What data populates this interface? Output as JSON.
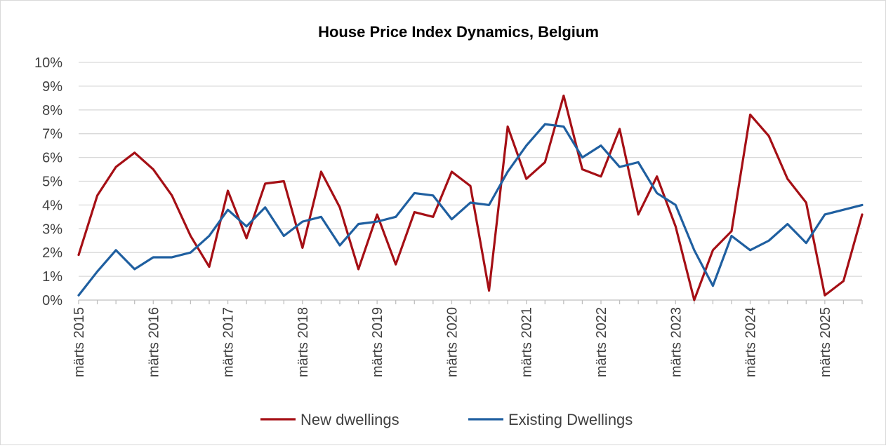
{
  "chart_data": {
    "type": "line",
    "title": "House Price Index Dynamics, Belgium",
    "xlabel": "",
    "ylabel": "",
    "ylim": [
      0,
      10
    ],
    "y_ticks": [
      "0%",
      "1%",
      "2%",
      "3%",
      "4%",
      "5%",
      "6%",
      "7%",
      "8%",
      "9%",
      "10%"
    ],
    "x_tick_labels": [
      "märts 2015",
      "märts 2016",
      "märts 2017",
      "märts 2018",
      "märts 2019",
      "märts 2020",
      "märts 2021",
      "märts 2022",
      "märts 2023",
      "märts 2024",
      "märts 2025"
    ],
    "grid": true,
    "legend_position": "bottom",
    "colors": {
      "New dwellings": "#a50f15",
      "Existing Dwellings": "#1f5fa0"
    },
    "x": [
      "2015-03",
      "2015-06",
      "2015-09",
      "2015-12",
      "2016-03",
      "2016-06",
      "2016-09",
      "2016-12",
      "2017-03",
      "2017-06",
      "2017-09",
      "2017-12",
      "2018-03",
      "2018-06",
      "2018-09",
      "2018-12",
      "2019-03",
      "2019-06",
      "2019-09",
      "2019-12",
      "2020-03",
      "2020-06",
      "2020-09",
      "2020-12",
      "2021-03",
      "2021-06",
      "2021-09",
      "2021-12",
      "2022-03",
      "2022-06",
      "2022-09",
      "2022-12",
      "2023-03",
      "2023-06",
      "2023-09",
      "2023-12",
      "2024-03",
      "2024-06",
      "2024-09",
      "2024-12",
      "2025-03",
      "2025-06",
      "2025-09"
    ],
    "series": [
      {
        "name": "New dwellings",
        "values": [
          1.9,
          4.4,
          5.6,
          6.2,
          5.5,
          4.4,
          2.7,
          1.4,
          4.6,
          2.6,
          4.9,
          5.0,
          2.2,
          5.4,
          3.9,
          1.3,
          3.6,
          1.5,
          3.7,
          3.5,
          5.4,
          4.8,
          0.4,
          7.3,
          5.1,
          5.8,
          8.6,
          5.5,
          5.2,
          7.2,
          3.6,
          5.2,
          3.1,
          0.0,
          2.1,
          2.9,
          7.8,
          6.9,
          5.1,
          4.1,
          0.2,
          0.8,
          3.6
        ]
      },
      {
        "name": "Existing Dwellings",
        "values": [
          0.2,
          1.2,
          2.1,
          1.3,
          1.8,
          1.8,
          2.0,
          2.7,
          3.8,
          3.1,
          3.9,
          2.7,
          3.3,
          3.5,
          2.3,
          3.2,
          3.3,
          3.5,
          4.5,
          4.4,
          3.4,
          4.1,
          4.0,
          5.4,
          6.5,
          7.4,
          7.3,
          6.0,
          6.5,
          5.6,
          5.8,
          4.5,
          4.0,
          2.1,
          0.6,
          2.7,
          2.1,
          2.5,
          3.2,
          2.4,
          3.6,
          3.8,
          4.0
        ]
      }
    ]
  }
}
